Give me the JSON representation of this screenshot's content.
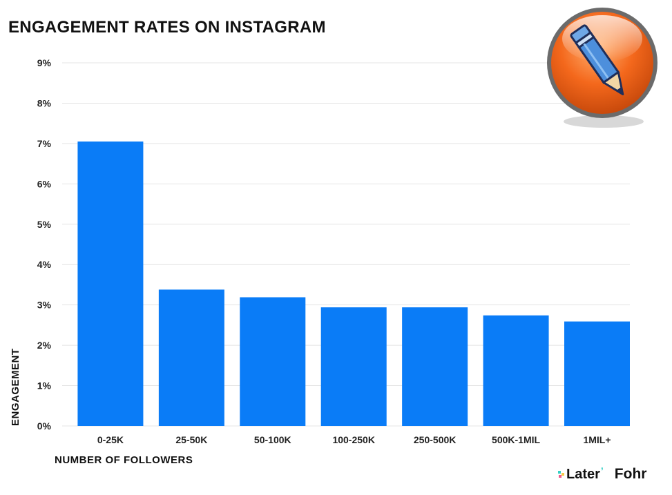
{
  "chart_data": {
    "type": "bar",
    "title": "ENGAGEMENT RATES ON INSTAGRAM",
    "xlabel": "NUMBER OF FOLLOWERS",
    "ylabel": "ENGAGEMENT",
    "categories": [
      "0-25K",
      "25-50K",
      "50-100K",
      "100-250K",
      "250-500K",
      "500K-1MIL",
      "1MIL+"
    ],
    "values": [
      7.05,
      3.38,
      3.19,
      2.94,
      2.94,
      2.74,
      2.59
    ],
    "ylim": [
      0,
      9
    ],
    "yticks": [
      "0%",
      "1%",
      "2%",
      "3%",
      "4%",
      "5%",
      "6%",
      "7%",
      "8%",
      "9%"
    ],
    "grid": true,
    "bar_color": "#0a7cf7"
  },
  "logos": {
    "later": "Later",
    "fohr": "Fohr"
  },
  "badge": {
    "icon": "pencil-icon",
    "color": "#f06a1f"
  }
}
